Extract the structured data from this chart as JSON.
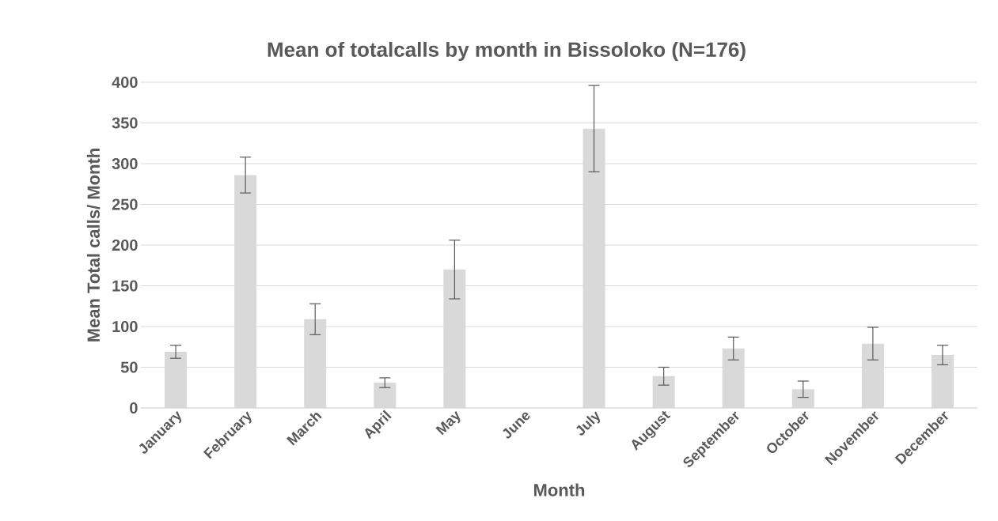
{
  "chart_data": {
    "type": "bar",
    "title": "Mean of totalcalls by month in Bissoloko (N=176)",
    "xlabel": "Month",
    "ylabel": "Mean Total calls/ Month",
    "categories": [
      "January",
      "February",
      "March",
      "April",
      "May",
      "June",
      "July",
      "August",
      "September",
      "October",
      "November",
      "December"
    ],
    "values": [
      69,
      286,
      109,
      31,
      170,
      null,
      343,
      39,
      73,
      23,
      79,
      65
    ],
    "errors": [
      8,
      22,
      19,
      6,
      36,
      null,
      53,
      11,
      14,
      10,
      20,
      12
    ],
    "color": "#d9d9d9",
    "ylim": [
      0,
      400
    ],
    "yticks": [
      0,
      50,
      100,
      150,
      200,
      250,
      300,
      350,
      400
    ],
    "grid": "y"
  }
}
